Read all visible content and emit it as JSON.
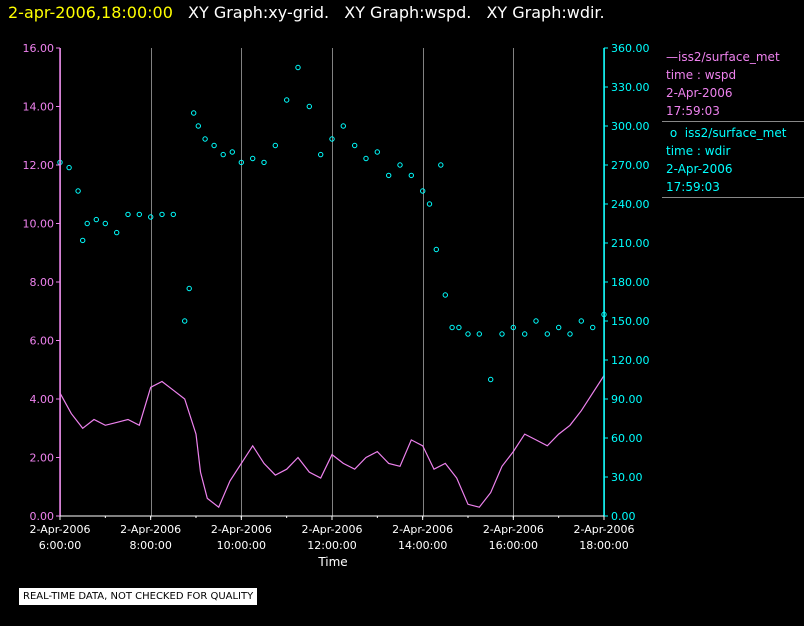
{
  "header": {
    "timestamp": "2-apr-2006,18:00:00",
    "graphs": [
      "XY Graph:xy-grid.",
      "XY Graph:wspd.",
      "XY Graph:wdir."
    ]
  },
  "legend": {
    "wspd": {
      "name": "iss2/surface_met",
      "line2": "time : wspd",
      "line3": "2-Apr-2006",
      "line4": "17:59:03"
    },
    "wdir": {
      "name": "iss2/surface_met",
      "line2": "time : wdir",
      "line3": "2-Apr-2006",
      "line4": "17:59:03"
    }
  },
  "notice": "REAL-TIME DATA, NOT CHECKED FOR QUALITY",
  "colors": {
    "wspd": "#ee82ee",
    "wdir": "#00ffff",
    "grid": "#ffffff",
    "header_time": "#ffff00"
  },
  "chart_data": {
    "type": "line",
    "xlabel": "Time",
    "x_unit": "hours since 2-Apr-2006 06:00",
    "xlim": [
      0,
      12
    ],
    "x_ticks": [
      {
        "date": "2-Apr-2006",
        "time": "6:00:00"
      },
      {
        "date": "2-Apr-2006",
        "time": "8:00:00"
      },
      {
        "date": "2-Apr-2006",
        "time": "10:00:00"
      },
      {
        "date": "2-Apr-2006",
        "time": "12:00:00"
      },
      {
        "date": "2-Apr-2006",
        "time": "14:00:00"
      },
      {
        "date": "2-Apr-2006",
        "time": "16:00:00"
      },
      {
        "date": "2-Apr-2006",
        "time": "18:00:00"
      }
    ],
    "y_left": {
      "lim": [
        0,
        16
      ],
      "ticks": [
        "0.00",
        "2.00",
        "4.00",
        "6.00",
        "8.00",
        "10.00",
        "12.00",
        "14.00",
        "16.00"
      ]
    },
    "y_right": {
      "lim": [
        0,
        360
      ],
      "ticks": [
        "0.00",
        "30.00",
        "60.00",
        "90.00",
        "120.00",
        "150.00",
        "180.00",
        "210.00",
        "240.00",
        "270.00",
        "300.00",
        "330.00",
        "360.00"
      ]
    },
    "grid": "vertical",
    "series": [
      {
        "name": "wspd",
        "axis": "left",
        "style": "line",
        "x": [
          0,
          0.25,
          0.5,
          0.75,
          1,
          1.25,
          1.5,
          1.75,
          2,
          2.25,
          2.5,
          2.75,
          3,
          3.1,
          3.25,
          3.5,
          3.75,
          4,
          4.25,
          4.5,
          4.75,
          5,
          5.25,
          5.5,
          5.75,
          6,
          6.25,
          6.5,
          6.75,
          7,
          7.25,
          7.5,
          7.75,
          8,
          8.25,
          8.5,
          8.75,
          9,
          9.25,
          9.5,
          9.75,
          10,
          10.25,
          10.5,
          10.75,
          11,
          11.25,
          11.5,
          11.75,
          12
        ],
        "y": [
          4.2,
          3.5,
          3.0,
          3.3,
          3.1,
          3.2,
          3.3,
          3.1,
          4.4,
          4.6,
          4.3,
          4.0,
          2.8,
          1.5,
          0.6,
          0.3,
          1.2,
          1.8,
          2.4,
          1.8,
          1.4,
          1.6,
          2.0,
          1.5,
          1.3,
          2.1,
          1.8,
          1.6,
          2.0,
          2.2,
          1.8,
          1.7,
          2.6,
          2.4,
          1.6,
          1.8,
          1.3,
          0.4,
          0.3,
          0.8,
          1.7,
          2.2,
          2.8,
          2.6,
          2.4,
          2.8,
          3.1,
          3.6,
          4.2,
          4.8
        ]
      },
      {
        "name": "wdir",
        "axis": "right",
        "style": "markers",
        "x": [
          0,
          0.2,
          0.4,
          0.5,
          0.6,
          0.8,
          1,
          1.25,
          1.5,
          1.75,
          2,
          2.25,
          2.5,
          2.75,
          2.85,
          2.95,
          3.05,
          3.2,
          3.4,
          3.6,
          3.8,
          4,
          4.25,
          4.5,
          4.75,
          5,
          5.25,
          5.5,
          5.75,
          6,
          6.25,
          6.5,
          6.75,
          7,
          7.25,
          7.5,
          7.75,
          8,
          8.15,
          8.3,
          8.4,
          8.5,
          8.65,
          8.8,
          9,
          9.25,
          9.5,
          9.75,
          10,
          10.25,
          10.5,
          10.75,
          11,
          11.25,
          11.5,
          11.75,
          12
        ],
        "y": [
          272,
          268,
          250,
          212,
          225,
          228,
          225,
          218,
          232,
          232,
          230,
          232,
          232,
          150,
          175,
          310,
          300,
          290,
          285,
          278,
          280,
          272,
          275,
          272,
          285,
          320,
          345,
          315,
          278,
          290,
          300,
          285,
          275,
          280,
          262,
          270,
          262,
          250,
          240,
          205,
          270,
          170,
          145,
          145,
          140,
          140,
          105,
          140,
          145,
          140,
          150,
          140,
          145,
          140,
          150,
          145,
          155
        ]
      }
    ]
  }
}
